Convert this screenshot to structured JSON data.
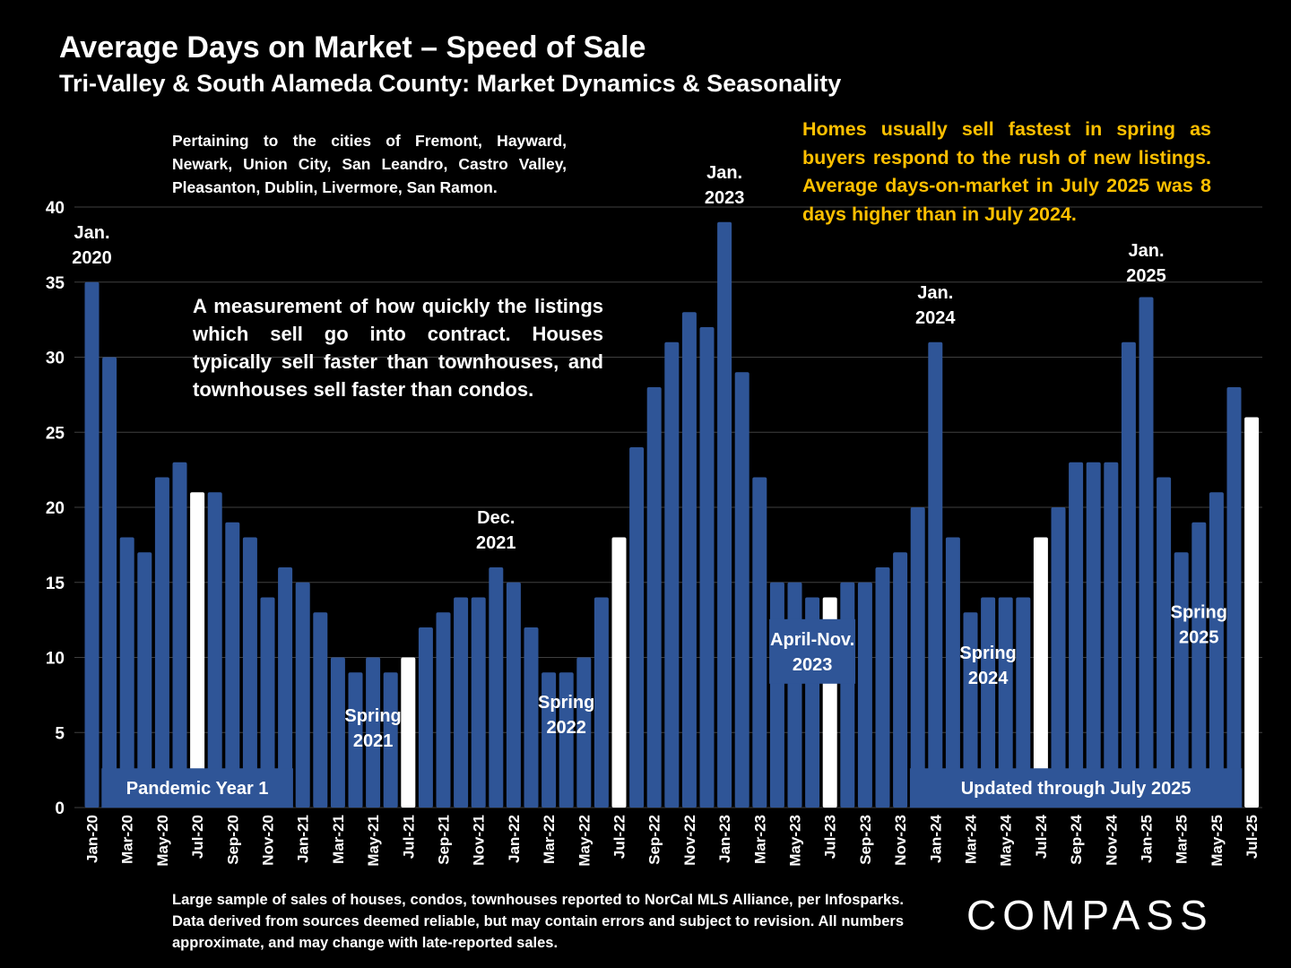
{
  "title": "Average Days on Market – Speed of Sale",
  "subtitle": "Tri-Valley & South Alameda County: Market Dynamics & Seasonality",
  "notes": {
    "cities": "Pertaining to the cities of Fremont, Hayward, Newark, Union City, San Leandro, Castro Valley, Pleasanton, Dublin, Livermore, San Ramon.",
    "measurement": "A measurement of how quickly the listings which sell go into contract. Houses typically sell faster than townhouses, and townhouses sell faster than condos.",
    "spring": "Homes usually sell fastest in spring as buyers respond to the rush of new listings. Average days-on-market in July 2025 was 8 days higher than in July 2024.",
    "source": "Large sample of sales of houses, condos, townhouses reported to NorCal MLS Alliance, per Infosparks. Data derived from sources deemed reliable, but may contain errors and subject to revision. All numbers approximate, and may change with late-reported sales."
  },
  "logo": "COMPASS",
  "colors": {
    "background": "#000000",
    "bar": "#2f5597",
    "highlight_bar": "#ffffff",
    "gridline": "#404040",
    "highlight_text": "#ffc000",
    "label_box": "#2f5597"
  },
  "chart_data": {
    "type": "bar",
    "x": [
      "Jan-20",
      "Feb-20",
      "Mar-20",
      "Apr-20",
      "May-20",
      "Jun-20",
      "Jul-20",
      "Aug-20",
      "Sep-20",
      "Oct-20",
      "Nov-20",
      "Dec-20",
      "Jan-21",
      "Feb-21",
      "Mar-21",
      "Apr-21",
      "May-21",
      "Jun-21",
      "Jul-21",
      "Aug-21",
      "Sep-21",
      "Oct-21",
      "Nov-21",
      "Dec-21",
      "Jan-22",
      "Feb-22",
      "Mar-22",
      "Apr-22",
      "May-22",
      "Jun-22",
      "Jul-22",
      "Aug-22",
      "Sep-22",
      "Oct-22",
      "Nov-22",
      "Dec-22",
      "Jan-23",
      "Feb-23",
      "Mar-23",
      "Apr-23",
      "May-23",
      "Jun-23",
      "Jul-23",
      "Aug-23",
      "Sep-23",
      "Oct-23",
      "Nov-23",
      "Dec-23",
      "Jan-24",
      "Feb-24",
      "Mar-24",
      "Apr-24",
      "May-24",
      "Jun-24",
      "Jul-24",
      "Aug-24",
      "Sep-24",
      "Oct-24",
      "Nov-24",
      "Dec-24",
      "Jan-25",
      "Feb-25",
      "Mar-25",
      "Apr-25",
      "May-25",
      "Jun-25",
      "Jul-25"
    ],
    "values": [
      35,
      30,
      18,
      17,
      22,
      23,
      21,
      21,
      19,
      18,
      14,
      16,
      15,
      13,
      10,
      9,
      10,
      9,
      10,
      12,
      13,
      14,
      14,
      16,
      15,
      12,
      9,
      9,
      10,
      14,
      18,
      24,
      28,
      31,
      33,
      32,
      39,
      29,
      22,
      15,
      15,
      14,
      14,
      15,
      15,
      16,
      17,
      20,
      31,
      18,
      13,
      14,
      14,
      14,
      18,
      20,
      23,
      23,
      23,
      31,
      34,
      22,
      17,
      19,
      21,
      28,
      26
    ],
    "highlighted": [
      "Jul-20",
      "Jul-21",
      "Jul-22",
      "Jul-23",
      "Jul-24",
      "Jul-25"
    ],
    "tick_labels": [
      "Jan-20",
      "Mar-20",
      "May-20",
      "Jul-20",
      "Sep-20",
      "Nov-20",
      "Jan-21",
      "Mar-21",
      "May-21",
      "Jul-21",
      "Sep-21",
      "Nov-21",
      "Jan-22",
      "Mar-22",
      "May-22",
      "Jul-22",
      "Sep-22",
      "Nov-22",
      "Jan-23",
      "Mar-23",
      "May-23",
      "Jul-23",
      "Sep-23",
      "Nov-23",
      "Jan-24",
      "Mar-24",
      "May-24",
      "Jul-24",
      "Sep-24",
      "Nov-24",
      "Jan-25",
      "Mar-25",
      "May-25",
      "Jul-25"
    ],
    "ylim": [
      0,
      40
    ],
    "yticks": [
      0,
      5,
      10,
      15,
      20,
      25,
      30,
      35,
      40
    ],
    "grid": true,
    "legend": "none",
    "annotations": [
      {
        "lines": [
          "Jan.",
          "2020"
        ],
        "month": "Jan-20",
        "value": 37.5
      },
      {
        "lines": [
          "Dec.",
          "2021"
        ],
        "month": "Dec-21",
        "value": 18.5
      },
      {
        "lines": [
          "Jan.",
          "2023"
        ],
        "month": "Jan-23",
        "value": 41.5
      },
      {
        "lines": [
          "Jan.",
          "2024"
        ],
        "month": "Jan-24",
        "value": 33.5
      },
      {
        "lines": [
          "Jan.",
          "2025"
        ],
        "month": "Jan-25",
        "value": 36.3
      },
      {
        "lines": [
          "Spring",
          "2021"
        ],
        "month": "May-21",
        "value": 5.3
      },
      {
        "lines": [
          "Spring",
          "2022"
        ],
        "month": "Apr-22",
        "value": 6.2
      },
      {
        "lines": [
          "Spring",
          "2024"
        ],
        "month": "Apr-24",
        "value": 9.5
      },
      {
        "lines": [
          "Spring",
          "2025"
        ],
        "month": "Apr-25",
        "value": 12.2
      }
    ],
    "label_boxes": [
      {
        "text": "Pandemic Year 1",
        "from": "Feb-20",
        "to": "Dec-20",
        "value": 1.3
      },
      {
        "lines": [
          "April-Nov.",
          "2023"
        ],
        "from": "Apr-23",
        "to": "Aug-23",
        "value": 10.4
      },
      {
        "text": "Updated through July 2025",
        "from": "Dec-23",
        "to": "Jun-25",
        "value": 1.3
      }
    ]
  }
}
